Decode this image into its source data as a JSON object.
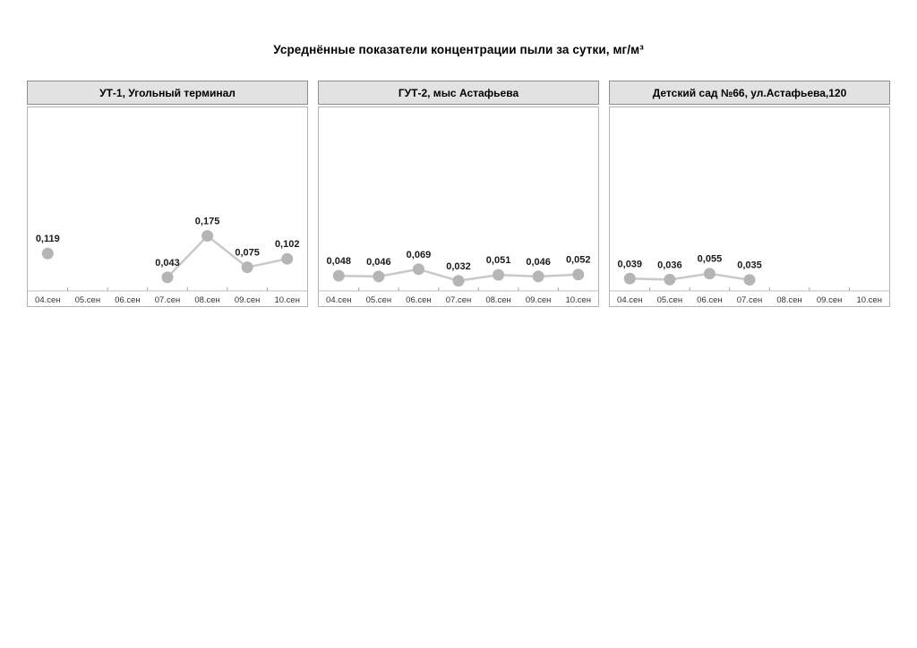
{
  "page_title": "Усреднённые показатели концентрации пыли за сутки, мг/м³",
  "colors": {
    "header_bg": "#e2e2e2",
    "header_border": "#8c8c8c",
    "plot_border": "#b3b3b3",
    "axis_line": "#bfbfbf",
    "tick_mark": "#a6a6a6",
    "marker": "#b5b5b5",
    "line": "#c9c9c9",
    "value_label_text": "#1a1a1a",
    "category_label_text": "#333333"
  },
  "chart_data": [
    {
      "type": "line",
      "title": "УТ-1, Угольный терминал",
      "categories": [
        "04.сен",
        "05.сен",
        "06.сен",
        "07.сен",
        "08.сен",
        "09.сен",
        "10.сен"
      ],
      "values": [
        0.119,
        null,
        null,
        0.043,
        0.175,
        0.075,
        0.102
      ],
      "labels": [
        "0,119",
        null,
        null,
        "0,043",
        "0,175",
        "0,075",
        "0,102"
      ],
      "xlabel": "",
      "ylabel": "",
      "ylim": [
        0,
        0.56
      ],
      "grid": false,
      "legend": false
    },
    {
      "type": "line",
      "title": "ГУТ-2, мыс Астафьева",
      "categories": [
        "04.сен",
        "05.сен",
        "06.сен",
        "07.сен",
        "08.сен",
        "09.сен",
        "10.сен"
      ],
      "values": [
        0.048,
        0.046,
        0.069,
        0.032,
        0.051,
        0.046,
        0.052
      ],
      "labels": [
        "0,048",
        "0,046",
        "0,069",
        "0,032",
        "0,051",
        "0,046",
        "0,052"
      ],
      "xlabel": "",
      "ylabel": "",
      "ylim": [
        0,
        0.56
      ],
      "grid": false,
      "legend": false
    },
    {
      "type": "line",
      "title": "Детский сад №66, ул.Астафьева,120",
      "categories": [
        "04.сен",
        "05.сен",
        "06.сен",
        "07.сен",
        "08.сен",
        "09.сен",
        "10.сен"
      ],
      "values": [
        0.039,
        0.036,
        0.055,
        0.035,
        null,
        null,
        null
      ],
      "labels": [
        "0,039",
        "0,036",
        "0,055",
        "0,035",
        null,
        null,
        null
      ],
      "xlabel": "",
      "ylabel": "",
      "ylim": [
        0,
        0.56
      ],
      "grid": false,
      "legend": false
    }
  ]
}
